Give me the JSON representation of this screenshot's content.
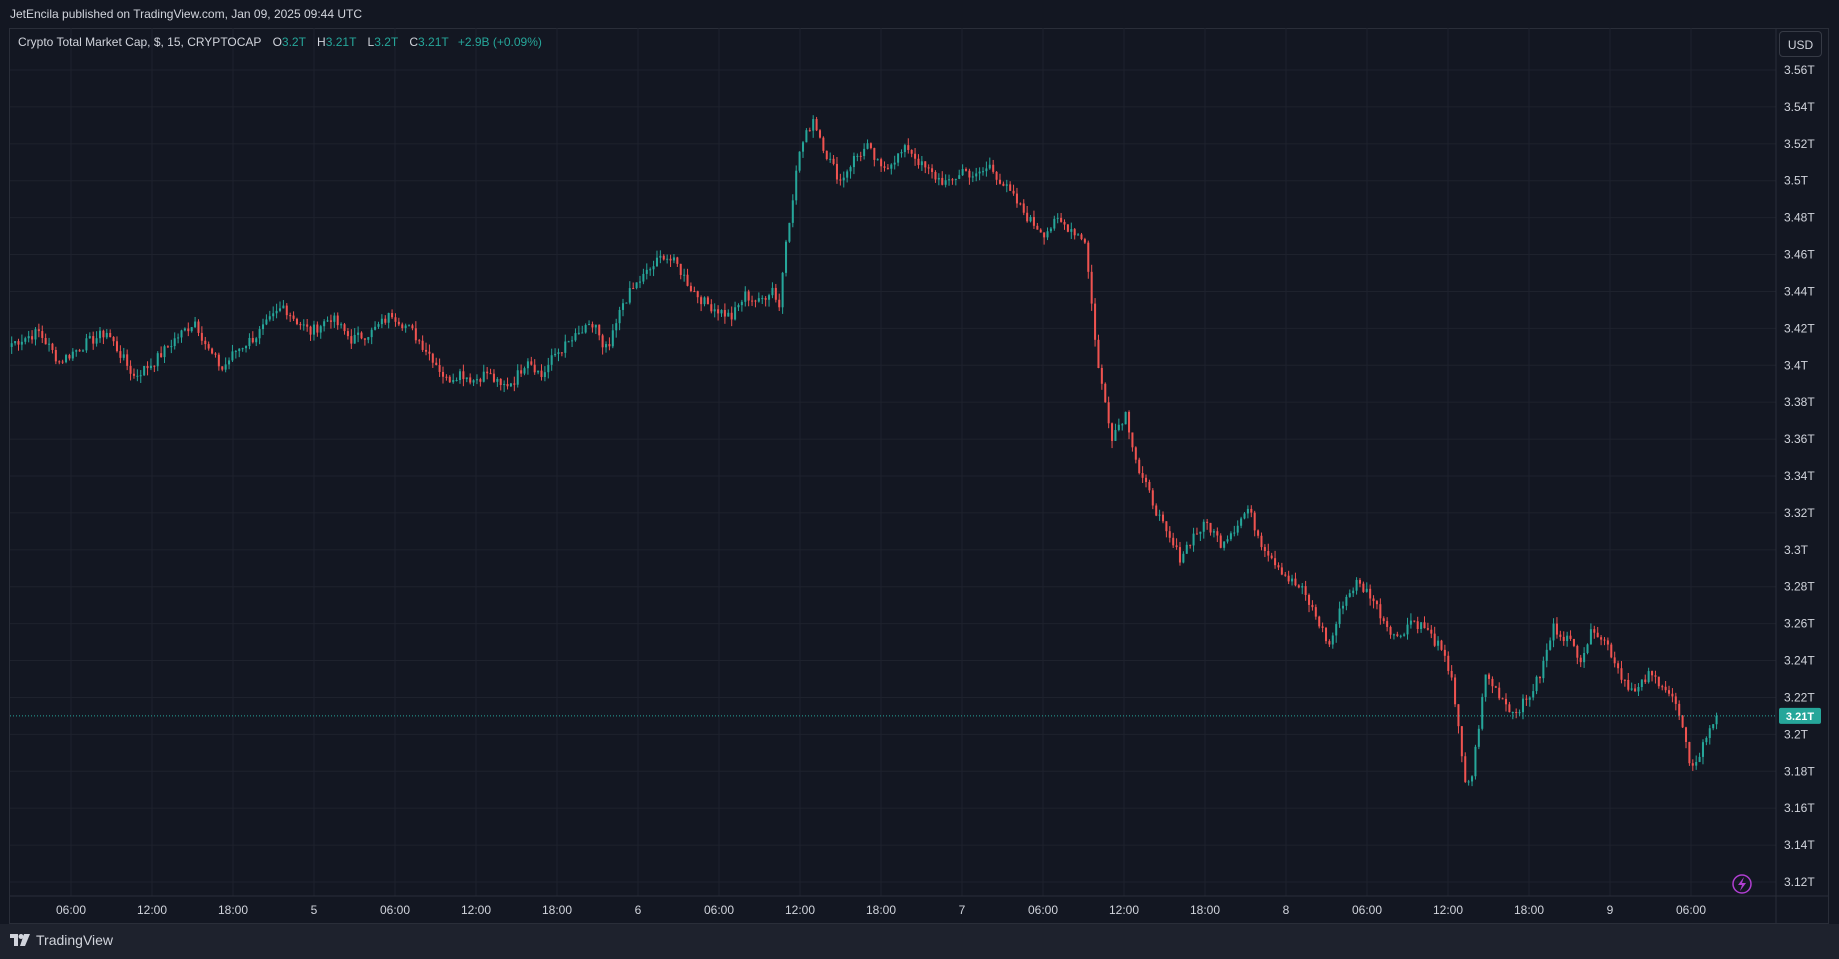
{
  "header": {
    "published_line": "JetEncila published on TradingView.com, Jan 09, 2025 09:44 UTC"
  },
  "legend": {
    "symbol": "Crypto Total Market Cap, $, 15, CRYPTOCAP",
    "o_label": "O",
    "o_value": "3.2T",
    "h_label": "H",
    "h_value": "3.21T",
    "l_label": "L",
    "l_value": "3.2T",
    "c_label": "C",
    "c_value": "3.21T",
    "change": "+2.9B (+0.09%)"
  },
  "currency_button": "USD",
  "last_price_label": "3.21T",
  "footer": {
    "brand": "TradingView"
  },
  "colors": {
    "up": "#26a69a",
    "down": "#ef5350",
    "background": "#131722",
    "grid": "#1e222d",
    "text": "#d1d4dc"
  },
  "icons": {
    "flash": "lightning-icon",
    "logo": "tradingview-logo-icon"
  },
  "chart_data": {
    "type": "candlestick",
    "title": "Crypto Total Market Cap, $, 15, CRYPTOCAP",
    "ylabel": "USD",
    "y_unit": "T",
    "ylim": [
      3.11,
      3.57
    ],
    "y_ticks": [
      "3.12T",
      "3.14T",
      "3.16T",
      "3.18T",
      "3.2T",
      "3.22T",
      "3.24T",
      "3.26T",
      "3.28T",
      "3.3T",
      "3.32T",
      "3.34T",
      "3.36T",
      "3.38T",
      "3.4T",
      "3.42T",
      "3.44T",
      "3.46T",
      "3.48T",
      "3.5T",
      "3.52T",
      "3.54T",
      "3.56T"
    ],
    "x_ticks": [
      "06:00",
      "12:00",
      "18:00",
      "5",
      "06:00",
      "12:00",
      "18:00",
      "6",
      "06:00",
      "12:00",
      "18:00",
      "7",
      "06:00",
      "12:00",
      "18:00",
      "8",
      "06:00",
      "12:00",
      "18:00",
      "9",
      "06:00"
    ],
    "bar_interval": "15m",
    "last_close": 3.21,
    "grid": true,
    "close_path": [
      [
        0,
        3.412
      ],
      [
        8,
        3.418
      ],
      [
        14,
        3.402
      ],
      [
        22,
        3.412
      ],
      [
        28,
        3.418
      ],
      [
        36,
        3.394
      ],
      [
        42,
        3.402
      ],
      [
        48,
        3.414
      ],
      [
        54,
        3.424
      ],
      [
        58,
        3.408
      ],
      [
        62,
        3.398
      ],
      [
        66,
        3.408
      ],
      [
        72,
        3.416
      ],
      [
        78,
        3.428
      ],
      [
        80,
        3.432
      ],
      [
        84,
        3.424
      ],
      [
        88,
        3.418
      ],
      [
        94,
        3.426
      ],
      [
        100,
        3.414
      ],
      [
        106,
        3.418
      ],
      [
        112,
        3.428
      ],
      [
        118,
        3.418
      ],
      [
        124,
        3.404
      ],
      [
        128,
        3.392
      ],
      [
        132,
        3.396
      ],
      [
        136,
        3.392
      ],
      [
        140,
        3.396
      ],
      [
        144,
        3.388
      ],
      [
        148,
        3.392
      ],
      [
        152,
        3.404
      ],
      [
        156,
        3.394
      ],
      [
        160,
        3.406
      ],
      [
        164,
        3.412
      ],
      [
        168,
        3.418
      ],
      [
        172,
        3.422
      ],
      [
        174,
        3.408
      ],
      [
        176,
        3.41
      ],
      [
        180,
        3.434
      ],
      [
        184,
        3.444
      ],
      [
        188,
        3.452
      ],
      [
        192,
        3.46
      ],
      [
        196,
        3.454
      ],
      [
        200,
        3.442
      ],
      [
        204,
        3.434
      ],
      [
        208,
        3.43
      ],
      [
        212,
        3.426
      ],
      [
        216,
        3.438
      ],
      [
        220,
        3.434
      ],
      [
        224,
        3.442
      ],
      [
        226,
        3.432
      ],
      [
        228,
        3.468
      ],
      [
        232,
        3.516
      ],
      [
        236,
        3.534
      ],
      [
        240,
        3.514
      ],
      [
        244,
        3.5
      ],
      [
        248,
        3.512
      ],
      [
        252,
        3.518
      ],
      [
        256,
        3.506
      ],
      [
        260,
        3.512
      ],
      [
        264,
        3.518
      ],
      [
        268,
        3.508
      ],
      [
        272,
        3.502
      ],
      [
        276,
        3.498
      ],
      [
        280,
        3.506
      ],
      [
        284,
        3.502
      ],
      [
        288,
        3.508
      ],
      [
        292,
        3.498
      ],
      [
        296,
        3.488
      ],
      [
        300,
        3.478
      ],
      [
        304,
        3.472
      ],
      [
        308,
        3.478
      ],
      [
        312,
        3.474
      ],
      [
        316,
        3.468
      ],
      [
        320,
        3.398
      ],
      [
        324,
        3.362
      ],
      [
        328,
        3.374
      ],
      [
        332,
        3.342
      ],
      [
        336,
        3.326
      ],
      [
        340,
        3.308
      ],
      [
        344,
        3.296
      ],
      [
        348,
        3.308
      ],
      [
        352,
        3.314
      ],
      [
        356,
        3.304
      ],
      [
        360,
        3.312
      ],
      [
        364,
        3.322
      ],
      [
        368,
        3.304
      ],
      [
        372,
        3.294
      ],
      [
        376,
        3.284
      ],
      [
        380,
        3.278
      ],
      [
        384,
        3.264
      ],
      [
        388,
        3.248
      ],
      [
        392,
        3.272
      ],
      [
        396,
        3.282
      ],
      [
        400,
        3.276
      ],
      [
        404,
        3.262
      ],
      [
        408,
        3.252
      ],
      [
        412,
        3.262
      ],
      [
        416,
        3.258
      ],
      [
        420,
        3.248
      ],
      [
        424,
        3.232
      ],
      [
        428,
        3.172
      ],
      [
        430,
        3.178
      ],
      [
        434,
        3.232
      ],
      [
        438,
        3.222
      ],
      [
        442,
        3.212
      ],
      [
        446,
        3.218
      ],
      [
        450,
        3.232
      ],
      [
        454,
        3.258
      ],
      [
        458,
        3.252
      ],
      [
        462,
        3.242
      ],
      [
        466,
        3.258
      ],
      [
        470,
        3.248
      ],
      [
        474,
        3.232
      ],
      [
        478,
        3.222
      ],
      [
        482,
        3.232
      ],
      [
        486,
        3.228
      ],
      [
        490,
        3.216
      ],
      [
        494,
        3.186
      ],
      [
        496,
        3.184
      ],
      [
        500,
        3.204
      ],
      [
        502,
        3.21
      ]
    ]
  }
}
